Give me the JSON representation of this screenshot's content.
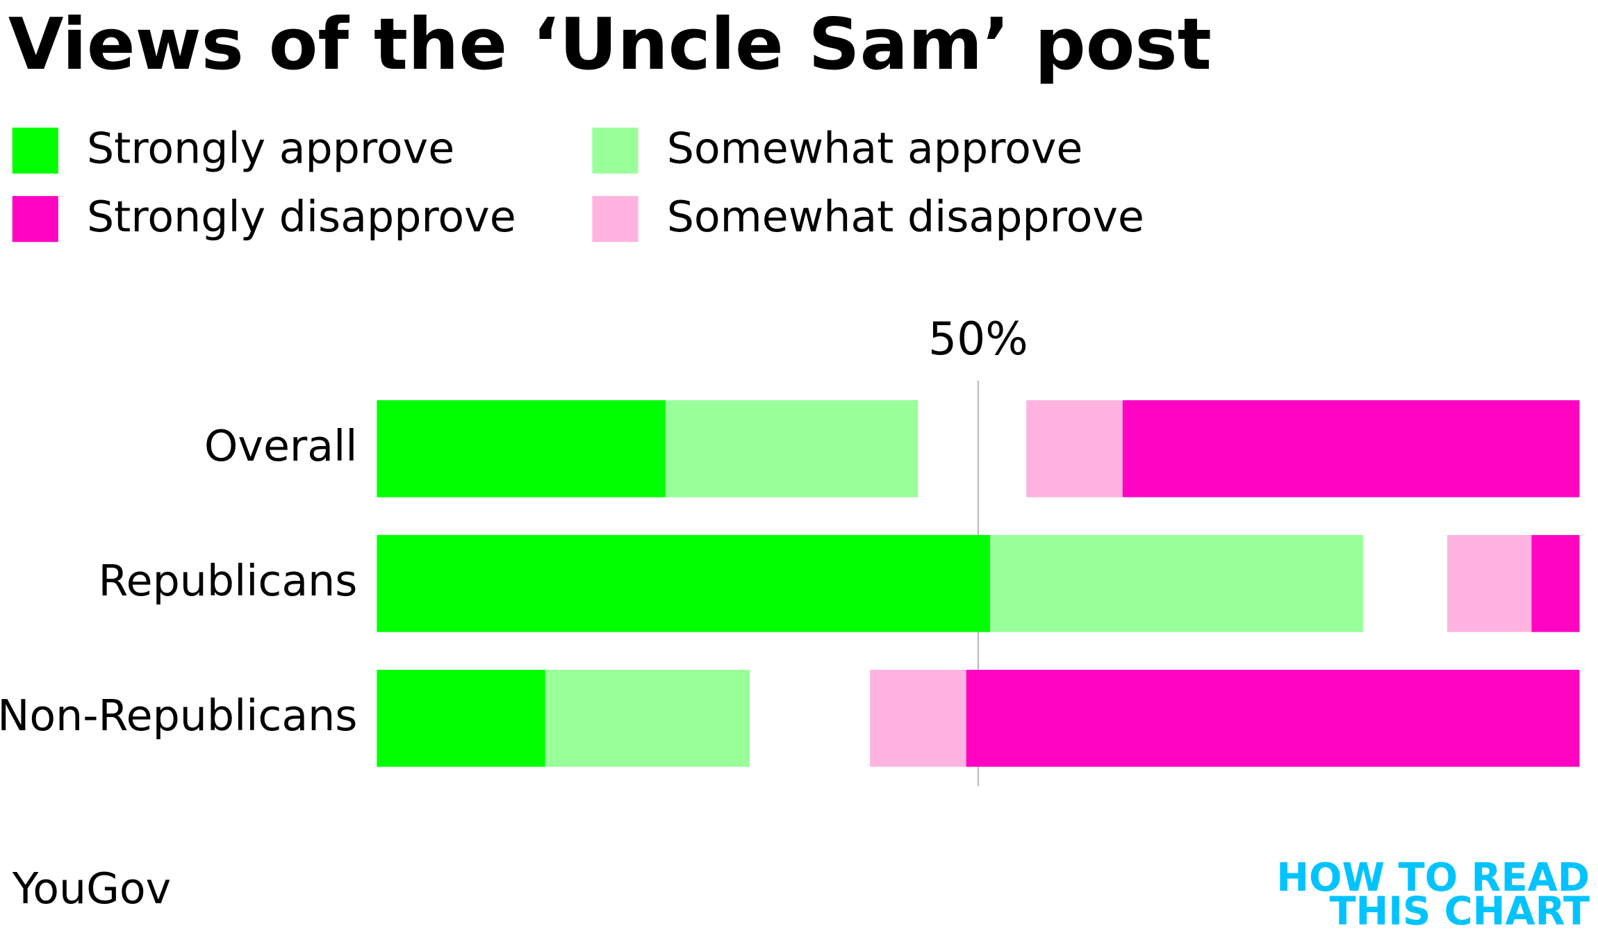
{
  "chart_data": {
    "type": "bar",
    "orientation": "horizontal",
    "stacked": true,
    "title": "Views of the ‘Uncle Sam’ post",
    "categories": [
      "Overall",
      "Republicans",
      "Non-Republicans"
    ],
    "series": [
      {
        "name": "Strongly approve",
        "color": "#00ff00",
        "values": [
          24,
          51,
          14
        ]
      },
      {
        "name": "Somewhat approve",
        "color": "#99ff99",
        "values": [
          21,
          31,
          17
        ]
      },
      {
        "name": "Strongly disapprove",
        "color": "#ff05c3",
        "values": [
          38,
          4,
          51
        ]
      },
      {
        "name": "Somewhat disapprove",
        "color": "#ffb3e0",
        "values": [
          8,
          7,
          8
        ]
      }
    ],
    "xlim": [
      0,
      100
    ],
    "xticks": [
      {
        "value": 50,
        "label": "50%"
      }
    ],
    "source": "YouGov",
    "logo": [
      "HOW TO READ",
      "THIS CHART"
    ]
  }
}
